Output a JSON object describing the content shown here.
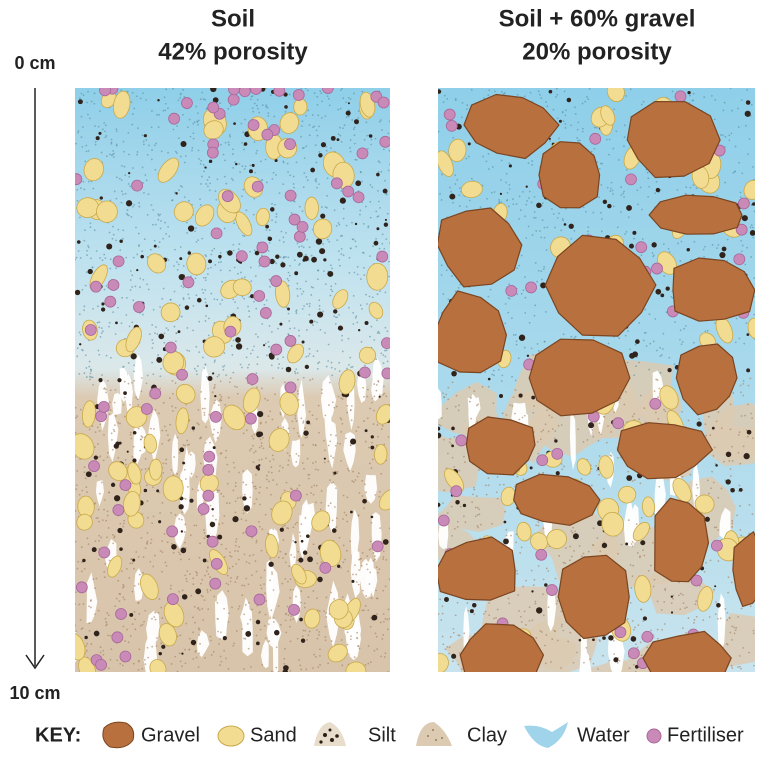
{
  "panels": [
    {
      "title": "Soil",
      "subtitle": "42% porosity"
    },
    {
      "title": "Soil + 60% gravel",
      "subtitle": "20% porosity"
    }
  ],
  "depth_axis": {
    "top": "0 cm",
    "bottom": "10 cm"
  },
  "key": {
    "label": "KEY:",
    "items": [
      "Gravel",
      "Sand",
      "Silt",
      "Clay",
      "Water",
      "Fertiliser"
    ]
  }
}
